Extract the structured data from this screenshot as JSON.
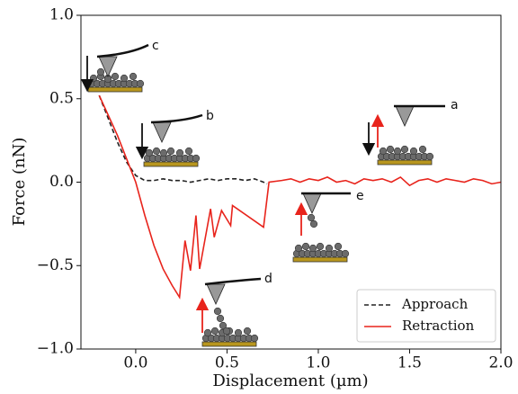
{
  "chart_data": {
    "type": "line",
    "x_label": "Displacement (µm)",
    "y_label": "Force (nN)",
    "xlim": [
      -0.3,
      2.0
    ],
    "ylim": [
      -1.0,
      1.0
    ],
    "xticks": [
      {
        "value": 0,
        "label": "0.0"
      },
      {
        "value": 0.5,
        "label": "0.5"
      },
      {
        "value": 1,
        "label": "1.0"
      },
      {
        "value": 1.5,
        "label": "1.5"
      },
      {
        "value": 2,
        "label": "2.0"
      }
    ],
    "yticks": [
      {
        "value": -1,
        "label": "−1.0"
      },
      {
        "value": -0.5,
        "label": "−0.5"
      },
      {
        "value": 0,
        "label": "0.0"
      },
      {
        "value": 0.5,
        "label": "0.5"
      },
      {
        "value": 1,
        "label": "1.0"
      }
    ],
    "legend": "lower right",
    "series": [
      {
        "name": "Approach",
        "color": "#222222",
        "linestyle": "dashed",
        "x": [
          -0.2,
          -0.15,
          -0.1,
          -0.05,
          0,
          0.05,
          0.1,
          0.15,
          0.2,
          0.25,
          0.3,
          0.35,
          0.4,
          0.45,
          0.5,
          0.55,
          0.6,
          0.65,
          0.7,
          0.72
        ],
        "values": [
          0.52,
          0.38,
          0.24,
          0.12,
          0.04,
          0.01,
          0.01,
          0.02,
          0.01,
          0.01,
          0.0,
          0.01,
          0.02,
          0.01,
          0.02,
          0.02,
          0.01,
          0.02,
          0.0,
          -0.01
        ]
      },
      {
        "name": "Retraction",
        "color": "#e8241c",
        "linestyle": "solid",
        "x": [
          -0.2,
          -0.1,
          0,
          0.05,
          0.1,
          0.15,
          0.2,
          0.24,
          0.27,
          0.3,
          0.33,
          0.35,
          0.41,
          0.43,
          0.47,
          0.52,
          0.53,
          0.7,
          0.73,
          0.8,
          0.85,
          0.9,
          0.95,
          1.0,
          1.05,
          1.1,
          1.15,
          1.2,
          1.25,
          1.3,
          1.35,
          1.4,
          1.45,
          1.5,
          1.55,
          1.6,
          1.65,
          1.7,
          1.75,
          1.8,
          1.85,
          1.9,
          1.95,
          2.0
        ],
        "values": [
          0.52,
          0.28,
          0.0,
          -0.2,
          -0.38,
          -0.52,
          -0.62,
          -0.69,
          -0.35,
          -0.53,
          -0.2,
          -0.52,
          -0.16,
          -0.33,
          -0.17,
          -0.26,
          -0.14,
          -0.27,
          0.0,
          0.01,
          0.02,
          0.0,
          0.02,
          0.01,
          0.03,
          0.0,
          0.01,
          -0.01,
          0.02,
          0.01,
          0.02,
          0.0,
          0.03,
          -0.02,
          0.01,
          0.02,
          0.0,
          0.02,
          0.01,
          0.0,
          0.02,
          0.01,
          -0.01,
          0.0
        ]
      }
    ],
    "annotations": [
      {
        "text": "a"
      },
      {
        "text": "b"
      },
      {
        "text": "c"
      },
      {
        "text": "d"
      },
      {
        "text": "e"
      }
    ]
  }
}
